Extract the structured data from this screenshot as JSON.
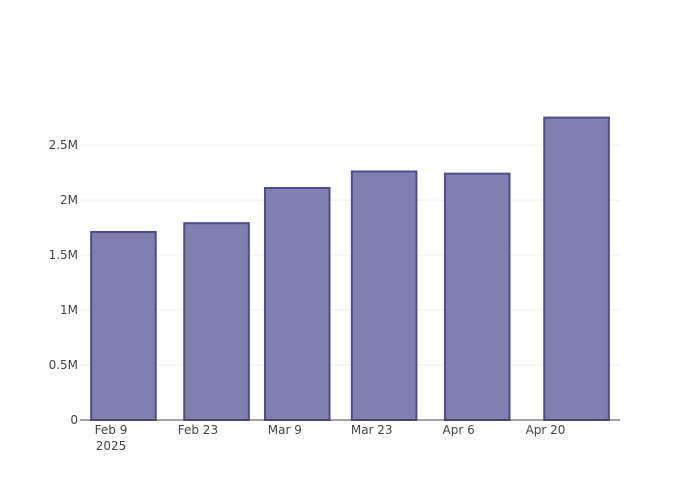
{
  "chart_data": {
    "type": "bar",
    "x": [
      "2025-02-11",
      "2025-02-26",
      "2025-03-11",
      "2025-03-25",
      "2025-04-09",
      "2025-04-25"
    ],
    "values": [
      1710000,
      1790000,
      2110000,
      2260000,
      2240000,
      2750000
    ],
    "color": "#7f7fb0",
    "line_color": "#4d4d8e",
    "xlim": [
      "2025-02-04",
      "2025-05-02"
    ],
    "xticks": [
      {
        "value": "2025-02-09",
        "label": "Feb 9\n2025"
      },
      {
        "value": "2025-02-23",
        "label": "Feb 23"
      },
      {
        "value": "2025-03-09",
        "label": "Mar 9"
      },
      {
        "value": "2025-03-23",
        "label": "Mar 23"
      },
      {
        "value": "2025-04-06",
        "label": "Apr 6"
      },
      {
        "value": "2025-04-20",
        "label": "Apr 20"
      }
    ],
    "ylim": [
      0,
      2910000
    ],
    "yticks": [
      0,
      {
        "value": 500000,
        "label": "0.5M"
      },
      {
        "value": 1000000,
        "label": "1M"
      },
      {
        "value": 1500000,
        "label": "1.5M"
      },
      {
        "value": 2000000,
        "label": "2M"
      },
      {
        "value": 2500000,
        "label": "2.5M"
      }
    ],
    "grid": true
  }
}
